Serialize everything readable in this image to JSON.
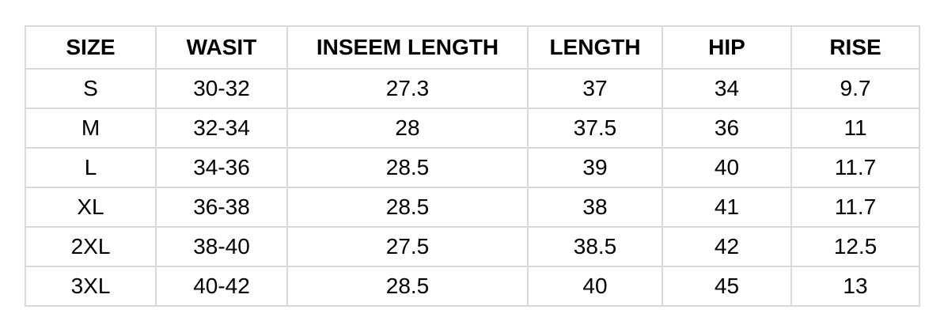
{
  "table": {
    "headers": [
      "SIZE",
      "WASIT",
      "INSEEM LENGTH",
      "LENGTH",
      "HIP",
      "RISE"
    ],
    "rows": [
      [
        "S",
        "30-32",
        "27.3",
        "37",
        "34",
        "9.7"
      ],
      [
        "M",
        "32-34",
        "28",
        "37.5",
        "36",
        "11"
      ],
      [
        "L",
        "34-36",
        "28.5",
        "39",
        "40",
        "11.7"
      ],
      [
        "XL",
        "36-38",
        "28.5",
        "38",
        "41",
        "11.7"
      ],
      [
        "2XL",
        "38-40",
        "27.5",
        "38.5",
        "42",
        "12.5"
      ],
      [
        "3XL",
        "40-42",
        "28.5",
        "40",
        "45",
        "13"
      ]
    ]
  }
}
